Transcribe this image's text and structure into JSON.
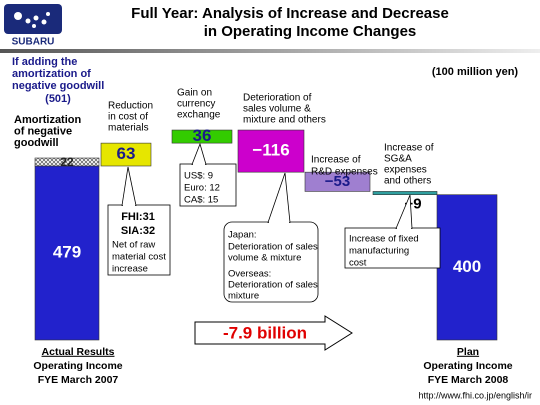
{
  "logo": "SUBARU",
  "url": "http://www.fhi.co.jp/english/ir",
  "chart_data": {
    "type": "waterfall",
    "title": [
      "Full Year: Analysis of Increase and Decrease",
      "in Operating Income Changes"
    ],
    "unit": "(100 million yen)",
    "categories": [
      [
        "Actual Results",
        "Operating Income",
        "FYE March 2007"
      ],
      [
        "Reduction",
        "in cost of",
        "materials"
      ],
      [
        "Gain on",
        "currency",
        "exchange"
      ],
      [
        "Deterioration of",
        "sales volume &",
        "mixture and others"
      ],
      [
        "Increase of",
        "R&D expenses"
      ],
      [
        "Increase of",
        "SG&A",
        "expenses",
        "and others"
      ],
      [
        "Plan",
        "Operating Income",
        "FYE March 2008"
      ]
    ],
    "values": [
      479,
      63,
      36,
      -116,
      -53,
      -9,
      400
    ],
    "value_labels": [
      "479",
      "63",
      "36",
      "−116",
      "−53",
      "−9",
      "400"
    ],
    "totals": [
      true,
      false,
      false,
      false,
      false,
      false,
      true
    ],
    "colors": [
      "#2222cc",
      "#e6e600",
      "#33cc00",
      "#cc00cc",
      "#9f7fd0",
      "#2f9f9f",
      "#2222cc"
    ],
    "amortization": {
      "label": [
        "Amortization",
        "of negative",
        "goodwill"
      ],
      "value": 22
    },
    "note": {
      "text": [
        "If adding the",
        "amortization of",
        "negative goodwill"
      ],
      "value": 501,
      "value_label": "(501)"
    },
    "callouts": [
      [
        "FHI:31",
        "SIA:32",
        "Net of raw",
        "material cost",
        "increase"
      ],
      [
        "US$: 9",
        "Euro: 12",
        "CA$: 15"
      ],
      [
        "Japan:",
        "Deterioration of sales",
        "volume & mixture",
        "Overseas:",
        "Deterioration of  sales",
        "mixture"
      ],
      [
        "Increase of fixed",
        "manufacturing",
        "cost"
      ]
    ],
    "arrow_label": "-7.9 billion"
  }
}
